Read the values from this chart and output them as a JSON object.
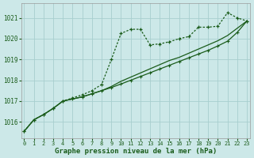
{
  "title": "Graphe pression niveau de la mer (hPa)",
  "bg_color": "#cce8e8",
  "line_color": "#1a5c1a",
  "grid_color": "#a8cece",
  "x_ticks": [
    0,
    1,
    2,
    3,
    4,
    5,
    6,
    7,
    8,
    9,
    10,
    11,
    12,
    13,
    14,
    15,
    16,
    17,
    18,
    19,
    20,
    21,
    22,
    23
  ],
  "y_ticks": [
    1016,
    1017,
    1018,
    1019,
    1020,
    1021
  ],
  "ylim": [
    1015.2,
    1021.7
  ],
  "xlim": [
    -0.3,
    23.3
  ],
  "series_x": [
    0,
    1,
    2,
    3,
    4,
    5,
    6,
    7,
    8,
    9,
    10,
    11,
    12,
    13,
    14,
    15,
    16,
    17,
    18,
    19,
    20,
    21,
    22,
    23
  ],
  "s1_y": [
    1015.55,
    1016.1,
    1016.35,
    1016.65,
    1017.0,
    1017.15,
    1017.3,
    1017.5,
    1017.8,
    1019.0,
    1020.25,
    1020.45,
    1020.45,
    1019.7,
    1019.75,
    1019.85,
    1020.0,
    1020.1,
    1020.55,
    1020.55,
    1020.6,
    1021.25,
    1021.0,
    1020.85
  ],
  "s2_y": [
    1015.55,
    1016.1,
    1016.35,
    1016.65,
    1017.0,
    1017.1,
    1017.2,
    1017.35,
    1017.5,
    1017.65,
    1017.82,
    1018.0,
    1018.18,
    1018.36,
    1018.54,
    1018.72,
    1018.9,
    1019.08,
    1019.26,
    1019.44,
    1019.65,
    1019.88,
    1020.3,
    1020.85
  ],
  "s3_y": [
    1015.55,
    1016.1,
    1016.35,
    1016.65,
    1017.0,
    1017.1,
    1017.2,
    1017.35,
    1017.5,
    1017.7,
    1017.95,
    1018.15,
    1018.35,
    1018.55,
    1018.75,
    1018.95,
    1019.1,
    1019.3,
    1019.5,
    1019.7,
    1019.9,
    1020.15,
    1020.5,
    1020.85
  ]
}
